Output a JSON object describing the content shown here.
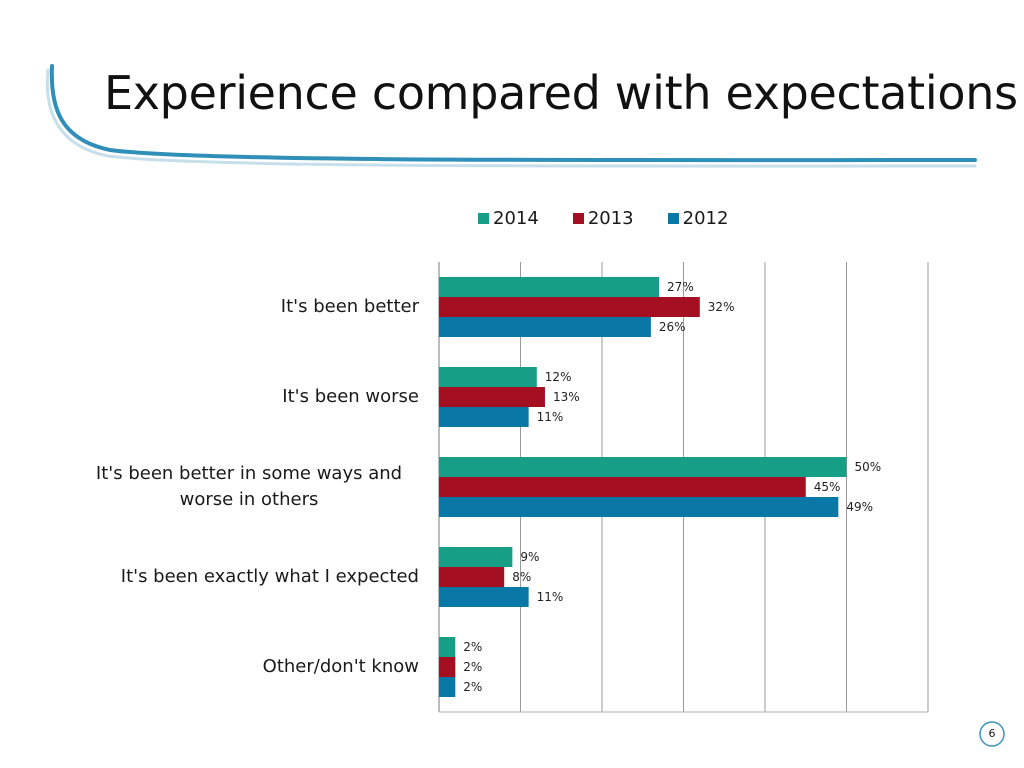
{
  "slide": {
    "title": "Experience compared with expectations",
    "page_number": "6"
  },
  "colors": {
    "2014": "#169e86",
    "2013": "#a40f22",
    "2012": "#0a78a6",
    "title_accent": "#2f8fb8",
    "grid": "#9a9a9a"
  },
  "chart_data": {
    "type": "bar",
    "orientation": "horizontal",
    "legend_position": "top",
    "grid": true,
    "xlim": [
      0,
      60
    ],
    "categories": [
      "It's been better",
      "It's been worse",
      "It's been better in some ways and worse in others",
      "It's been exactly what I expected",
      "Other/don't know"
    ],
    "category_lines": [
      [
        "It's been better"
      ],
      [
        "It's been worse"
      ],
      [
        "It's been better in some ways and",
        "worse in others"
      ],
      [
        "It's been exactly what I expected"
      ],
      [
        "Other/don't know"
      ]
    ],
    "series": [
      {
        "name": "2014",
        "values": [
          27,
          12,
          50,
          9,
          2
        ],
        "labels": [
          "27%",
          "12%",
          "50%",
          "9%",
          "2%"
        ]
      },
      {
        "name": "2013",
        "values": [
          32,
          13,
          45,
          8,
          2
        ],
        "labels": [
          "32%",
          "13%",
          "45%",
          "8%",
          "2%"
        ]
      },
      {
        "name": "2012",
        "values": [
          26,
          11,
          49,
          11,
          2
        ],
        "labels": [
          "26%",
          "11%",
          "49%",
          "11%",
          "2%"
        ]
      }
    ]
  }
}
